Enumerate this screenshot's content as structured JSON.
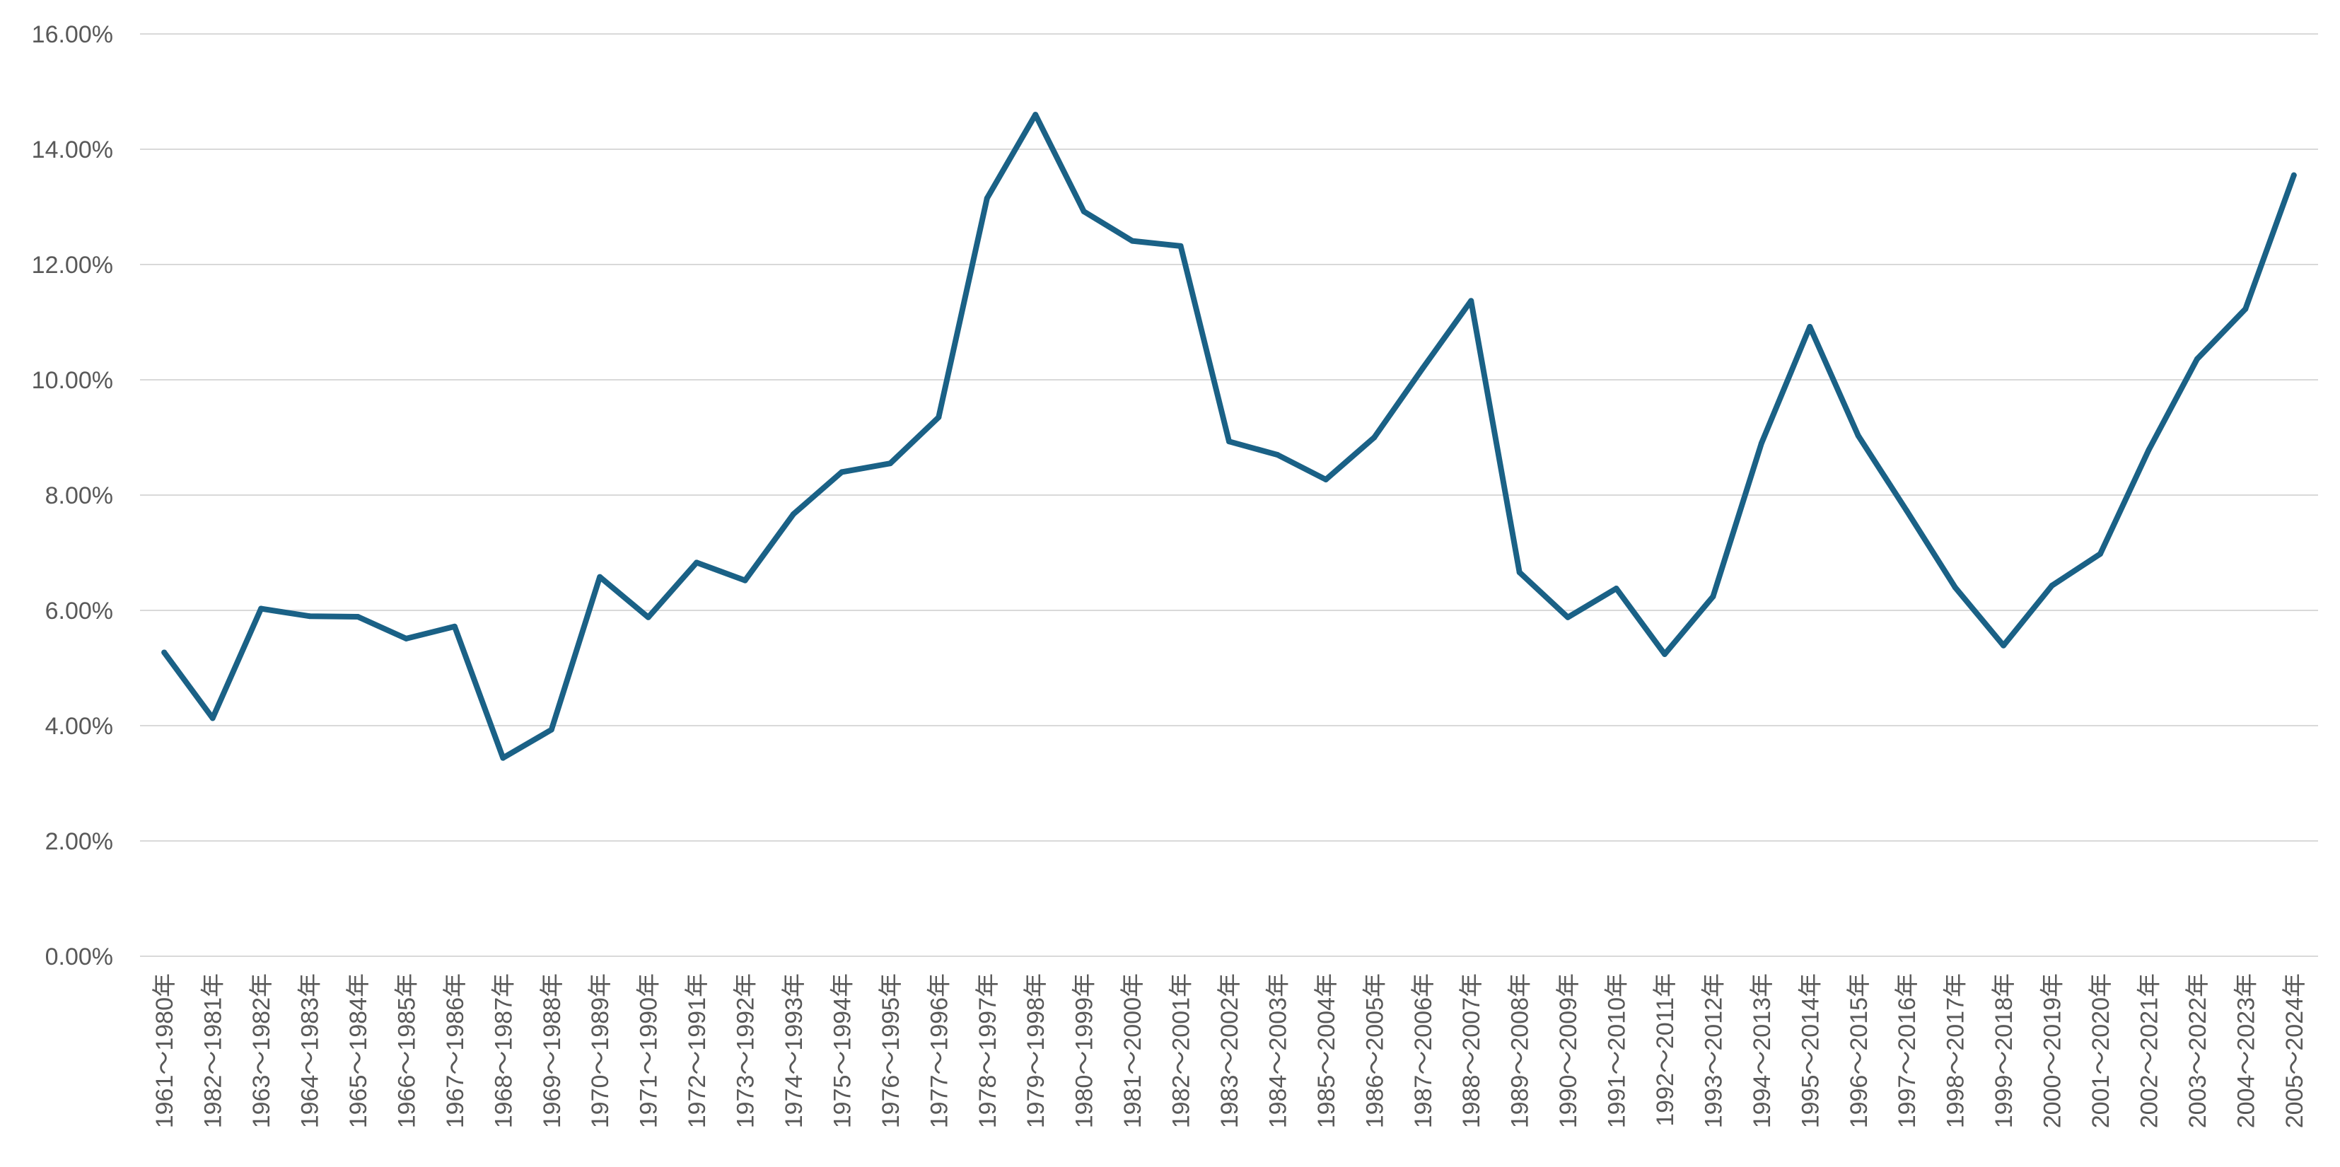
{
  "chart_data": {
    "type": "line",
    "title": "",
    "xlabel": "",
    "ylabel": "",
    "ylim": [
      0,
      0.16
    ],
    "y_ticks": [
      0,
      0.02,
      0.04,
      0.06,
      0.08,
      0.1,
      0.12,
      0.14,
      0.16
    ],
    "y_tick_labels": [
      "0.00%",
      "2.00%",
      "4.00%",
      "6.00%",
      "8.00%",
      "10.00%",
      "12.00%",
      "14.00%",
      "16.00%"
    ],
    "grid": true,
    "legend": "none",
    "line_color": "#1a6186",
    "categories": [
      "1961～1980年",
      "1982～1981年",
      "1963～1982年",
      "1964～1983年",
      "1965～1984年",
      "1966～1985年",
      "1967～1986年",
      "1968～1987年",
      "1969～1988年",
      "1970～1989年",
      "1971～1990年",
      "1972～1991年",
      "1973～1992年",
      "1974～1993年",
      "1975～1994年",
      "1976～1995年",
      "1977～1996年",
      "1978～1997年",
      "1979～1998年",
      "1980～1999年",
      "1981～2000年",
      "1982～2001年",
      "1983～2002年",
      "1984～2003年",
      "1985～2004年",
      "1986～2005年",
      "1987～2006年",
      "1988～2007年",
      "1989～2008年",
      "1990～2009年",
      "1991～2010年",
      "1992～2011年",
      "1993～2012年",
      "1994～2013年",
      "1995～2014年",
      "1996～2015年",
      "1997～2016年",
      "1998～2017年",
      "1999～2018年",
      "2000～2019年",
      "2001～2020年",
      "2002～2021年",
      "2003～2022年",
      "2004～2023年",
      "2005～2024年"
    ],
    "series": [
      {
        "values": [
          0.0527,
          0.0413,
          0.0603,
          0.059,
          0.0589,
          0.0551,
          0.0572,
          0.0344,
          0.0393,
          0.0658,
          0.0588,
          0.0683,
          0.0652,
          0.0767,
          0.084,
          0.0855,
          0.0935,
          0.1315,
          0.146,
          0.1292,
          0.1241,
          0.1232,
          0.0893,
          0.087,
          0.0827,
          0.09,
          0.102,
          0.1137,
          0.0666,
          0.0588,
          0.0638,
          0.0524,
          0.0624,
          0.089,
          0.1092,
          0.0903,
          0.0773,
          0.064,
          0.0539,
          0.0643,
          0.0698,
          0.0878,
          0.1036,
          0.1123,
          0.1355
        ]
      }
    ]
  }
}
